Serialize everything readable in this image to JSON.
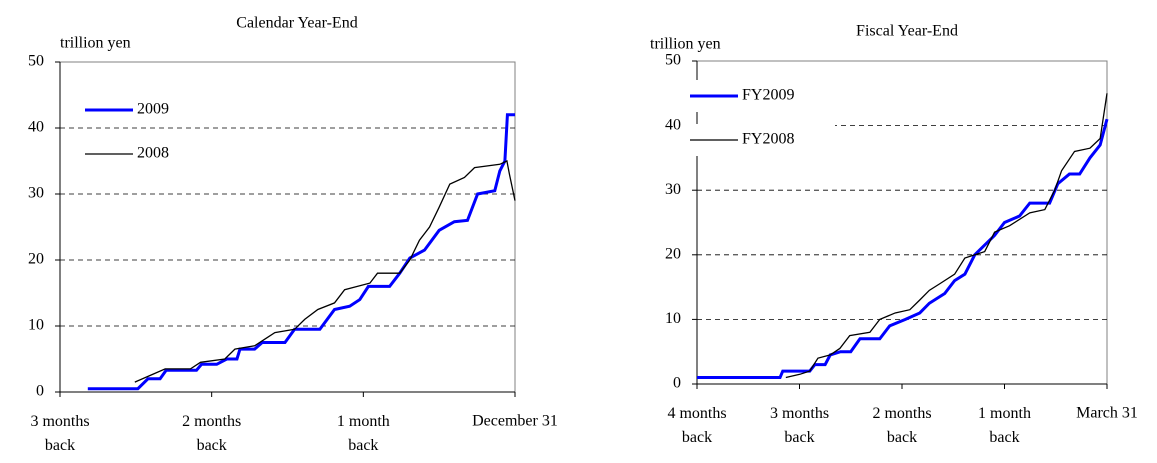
{
  "chart_data": [
    {
      "type": "line",
      "title": "Calendar Year-End",
      "y_label": "trillion yen",
      "xlim": [
        -90,
        0
      ],
      "xticks": [
        {
          "value": -90,
          "label": "3 months\nback"
        },
        {
          "value": -60,
          "label": "2 months\nback"
        },
        {
          "value": -30,
          "label": "1 month\nback"
        },
        {
          "value": 0,
          "label": "December 31"
        }
      ],
      "ylim": [
        0,
        50
      ],
      "yticks": [
        0,
        10,
        20,
        30,
        40,
        50
      ],
      "grid": true,
      "legend": "upper left",
      "series": [
        {
          "name": "2009",
          "color": "#0000ff",
          "x": [
            -84.5,
            -74.6,
            -72.6,
            -70.2,
            -69,
            -63,
            -62,
            -59,
            -57,
            -55,
            -54.4,
            -51.5,
            -50,
            -45.5,
            -43.6,
            -38.6,
            -35.7,
            -32.7,
            -30.7,
            -29,
            -24.8,
            -22.8,
            -20.8,
            -17.9,
            -15,
            -12,
            -9.4,
            -7.4,
            -4,
            -3,
            -2,
            -1.5,
            0
          ],
          "values": [
            0.5,
            0.5,
            2,
            2,
            3.3,
            3.3,
            4.2,
            4.2,
            5,
            5,
            6.5,
            6.5,
            7.5,
            7.5,
            9.5,
            9.5,
            12.5,
            13,
            14,
            16,
            16,
            18,
            20.3,
            21.5,
            24.5,
            25.8,
            26,
            30,
            30.5,
            33.5,
            35,
            42,
            42
          ]
        },
        {
          "name": "2008",
          "color": "#000000",
          "x": [
            -75.2,
            -72.2,
            -69.2,
            -64.2,
            -62.2,
            -57.4,
            -55.4,
            -51.5,
            -49.5,
            -47.5,
            -43.6,
            -41.6,
            -39,
            -35.7,
            -33.7,
            -28.7,
            -27.2,
            -22.8,
            -20.8,
            -18.9,
            -16.9,
            -15,
            -12.9,
            -10,
            -8,
            -3,
            -1.6,
            -1.1,
            0
          ],
          "values": [
            1.5,
            2.5,
            3.5,
            3.5,
            4.5,
            5,
            6.5,
            7,
            8,
            9,
            9.5,
            11,
            12.5,
            13.5,
            15.5,
            16.5,
            18,
            18,
            20,
            23,
            25,
            28,
            31.5,
            32.5,
            34,
            34.5,
            35,
            33,
            29
          ]
        }
      ]
    },
    {
      "type": "line",
      "title": "Fiscal Year-End",
      "y_label": "trillion yen",
      "xlim": [
        -120,
        0
      ],
      "xticks": [
        {
          "value": -120,
          "label": "4 months\nback"
        },
        {
          "value": -90,
          "label": "3 months\nback"
        },
        {
          "value": -60,
          "label": "2 months\nback"
        },
        {
          "value": -30,
          "label": "1 month\nback"
        },
        {
          "value": 0,
          "label": "March 31"
        }
      ],
      "ylim": [
        0,
        50
      ],
      "yticks": [
        0,
        10,
        20,
        30,
        40,
        50
      ],
      "grid": true,
      "legend": "upper left",
      "series": [
        {
          "name": "FY2009",
          "color": "#0000ff",
          "x": [
            -120,
            -95.7,
            -94.9,
            -87,
            -85.5,
            -82.5,
            -81,
            -78,
            -75,
            -72.3,
            -66.5,
            -63.6,
            -59,
            -54.8,
            -52,
            -47.5,
            -44.6,
            -41.6,
            -38.7,
            -35.8,
            -32.9,
            -30,
            -25.6,
            -22.6,
            -16.8,
            -14.4,
            -11,
            -8,
            -5,
            -2,
            0
          ],
          "values": [
            1,
            1,
            2,
            2,
            3,
            3,
            4.5,
            5,
            5,
            7,
            7,
            9,
            10,
            11,
            12.5,
            14,
            16,
            17,
            20,
            21.5,
            23,
            25,
            26,
            28,
            28,
            31,
            32.5,
            32.5,
            35,
            37,
            41
          ]
        },
        {
          "name": "FY2008",
          "color": "#000000",
          "x": [
            -94,
            -89.9,
            -87,
            -84.6,
            -81,
            -78.2,
            -75.3,
            -69.4,
            -66.5,
            -62,
            -57.7,
            -54.8,
            -52,
            -49,
            -44.6,
            -41.6,
            -35.8,
            -32.9,
            -28.5,
            -22.6,
            -18.2,
            -15.3,
            -13.3,
            -9.5,
            -5,
            -2,
            0
          ],
          "values": [
            1,
            1.5,
            2,
            4,
            4.5,
            5.5,
            7.5,
            8,
            10,
            11,
            11.5,
            13,
            14.5,
            15.5,
            17,
            19.5,
            20.5,
            23.5,
            24.5,
            26.5,
            27,
            30,
            33,
            36,
            36.5,
            38,
            45
          ]
        }
      ]
    }
  ]
}
